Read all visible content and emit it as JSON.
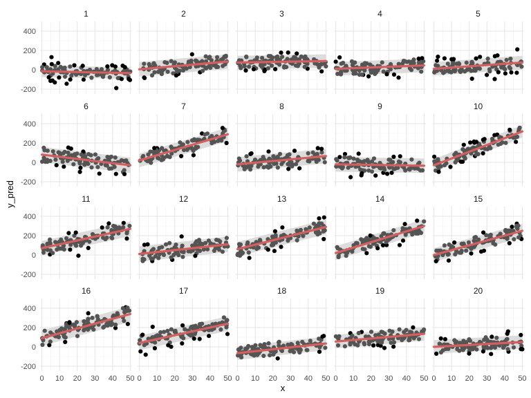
{
  "chart_data": {
    "type": "scatter",
    "layout": "facet-grid",
    "xlabel": "x",
    "ylabel": "y_pred",
    "xlim": [
      -1,
      51
    ],
    "ylim": [
      -250,
      500
    ],
    "x_ticks": [
      0,
      10,
      20,
      30,
      40,
      50
    ],
    "y_ticks": [
      -200,
      0,
      200,
      400
    ],
    "grid": true,
    "colors": {
      "points": "#545454",
      "points_outlier": "#000000",
      "ribbon": "#d6d6d6",
      "line": "#d45f5f",
      "grid_major": "#e4e4e4",
      "grid_minor": "#f1f1f1"
    },
    "n_points_per_panel": 100,
    "panels": [
      {
        "label": "1",
        "intercept": -15,
        "slope": -0.4,
        "noise_sd": 45,
        "band_half_width": 60
      },
      {
        "label": "2",
        "intercept": 5,
        "slope": 1.6,
        "noise_sd": 45,
        "band_half_width": 75
      },
      {
        "label": "3",
        "intercept": 75,
        "slope": 0.3,
        "noise_sd": 45,
        "band_half_width": 70
      },
      {
        "label": "4",
        "intercept": 10,
        "slope": 0.7,
        "noise_sd": 45,
        "band_half_width": 70
      },
      {
        "label": "5",
        "intercept": 10,
        "slope": 1.3,
        "noise_sd": 45,
        "band_half_width": 70
      },
      {
        "label": "6",
        "intercept": 80,
        "slope": -2.2,
        "noise_sd": 45,
        "band_half_width": 80
      },
      {
        "label": "7",
        "intercept": 20,
        "slope": 5.4,
        "noise_sd": 45,
        "band_half_width": 70
      },
      {
        "label": "8",
        "intercept": -20,
        "slope": 1.7,
        "noise_sd": 45,
        "band_half_width": 75
      },
      {
        "label": "9",
        "intercept": -20,
        "slope": -0.3,
        "noise_sd": 45,
        "band_half_width": 75
      },
      {
        "label": "10",
        "intercept": -30,
        "slope": 7.0,
        "noise_sd": 45,
        "band_half_width": 65
      },
      {
        "label": "11",
        "intercept": 70,
        "slope": 4.0,
        "noise_sd": 45,
        "band_half_width": 75
      },
      {
        "label": "12",
        "intercept": 10,
        "slope": 2.0,
        "noise_sd": 45,
        "band_half_width": 80
      },
      {
        "label": "13",
        "intercept": 60,
        "slope": 4.6,
        "noise_sd": 45,
        "band_half_width": 75
      },
      {
        "label": "14",
        "intercept": 20,
        "slope": 5.6,
        "noise_sd": 45,
        "band_half_width": 70
      },
      {
        "label": "15",
        "intercept": 0,
        "slope": 5.0,
        "noise_sd": 45,
        "band_half_width": 70
      },
      {
        "label": "16",
        "intercept": 90,
        "slope": 5.0,
        "noise_sd": 45,
        "band_half_width": 80
      },
      {
        "label": "17",
        "intercept": 40,
        "slope": 4.0,
        "noise_sd": 45,
        "band_half_width": 75
      },
      {
        "label": "18",
        "intercept": -65,
        "slope": 2.0,
        "noise_sd": 40,
        "band_half_width": 70
      },
      {
        "label": "19",
        "intercept": 55,
        "slope": 1.6,
        "noise_sd": 45,
        "band_half_width": 70
      },
      {
        "label": "20",
        "intercept": 0,
        "slope": 1.0,
        "noise_sd": 45,
        "band_half_width": 70
      }
    ]
  }
}
